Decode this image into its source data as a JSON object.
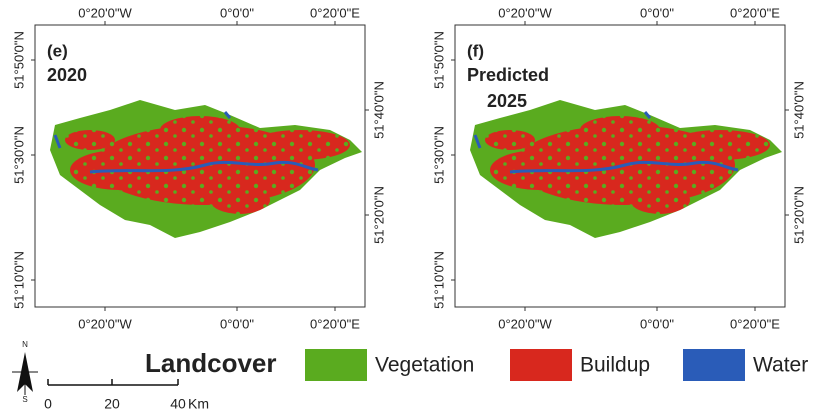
{
  "panels": [
    {
      "label": "(e)",
      "caption_lines": [
        "2020"
      ]
    },
    {
      "label": "(f)",
      "caption_lines": [
        "Predicted",
        "2025"
      ]
    }
  ],
  "axes": {
    "top": [
      "0°20'0\"W",
      "0°0'0\"",
      "0°20'0\"E"
    ],
    "bottom": [
      "0°20'0\"W",
      "0°0'0\"",
      "0°20'0\"E"
    ],
    "left": [
      "51°50'0\"N",
      "51°30'0\"N",
      "51°10'0\"N"
    ],
    "right": [
      "51°40'0\"N",
      "51°20'0\"N"
    ]
  },
  "legend": {
    "title": "Landcover",
    "items": [
      {
        "name": "Vegetation",
        "color": "#5aab1f"
      },
      {
        "name": "Buildup",
        "color": "#d8281e"
      },
      {
        "name": "Water",
        "color": "#2a5cb8"
      }
    ]
  },
  "north_arrow": {
    "north": "N",
    "south": "S"
  },
  "scale_bar": {
    "labels": [
      "0",
      "20",
      "40"
    ],
    "unit": "Km"
  }
}
